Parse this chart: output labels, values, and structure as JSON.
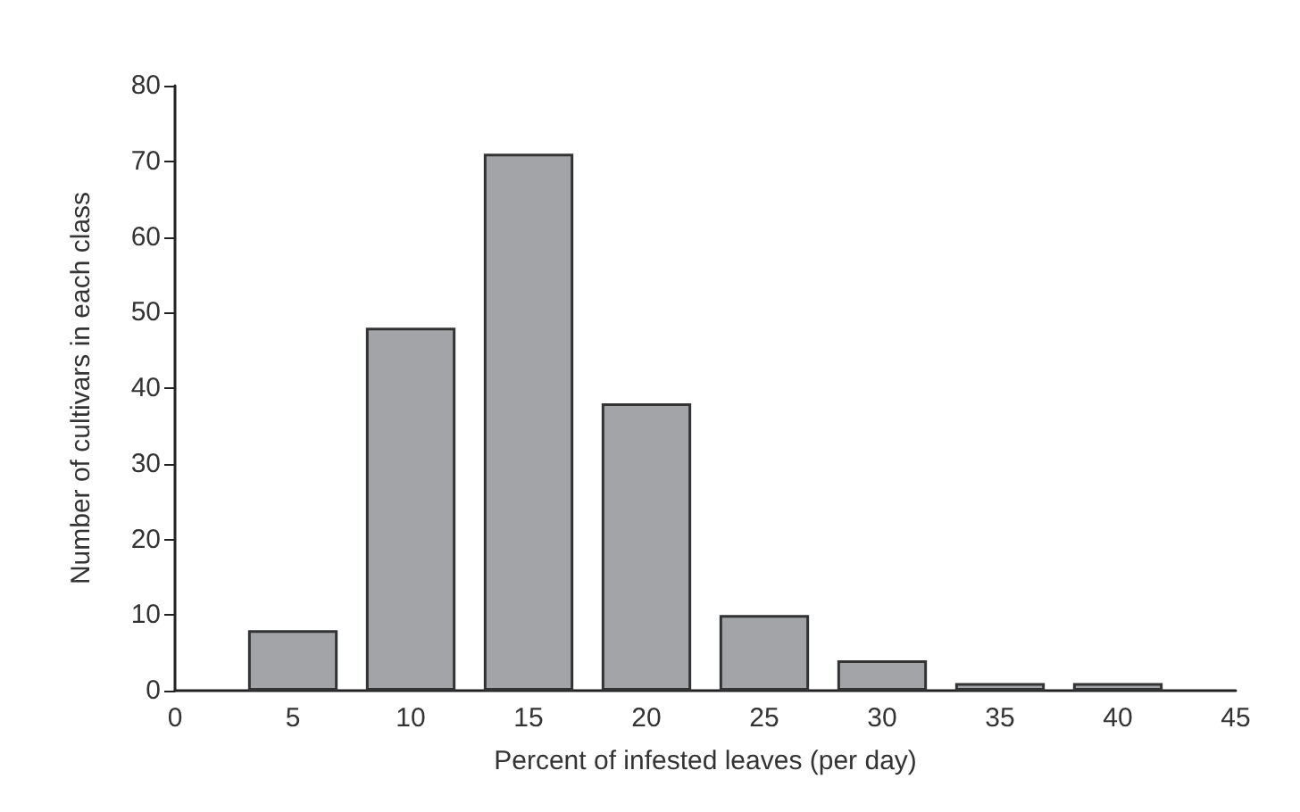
{
  "chart_data": {
    "type": "bar",
    "xlabel": "Percent of infested leaves (per day)",
    "ylabel": "Number of cultivars in each class",
    "x": [
      5,
      10,
      15,
      20,
      25,
      30,
      35,
      40
    ],
    "values": [
      8,
      48,
      71,
      38,
      10,
      4,
      1,
      1
    ],
    "color": "#a3a4a8",
    "xlim": [
      0,
      45
    ],
    "xticks": [
      0,
      5,
      10,
      15,
      20,
      25,
      30,
      35,
      40,
      45
    ],
    "ylim": [
      0,
      80
    ],
    "yticks": [
      0,
      10,
      20,
      30,
      40,
      50,
      60,
      70,
      80
    ],
    "grid": false
  }
}
